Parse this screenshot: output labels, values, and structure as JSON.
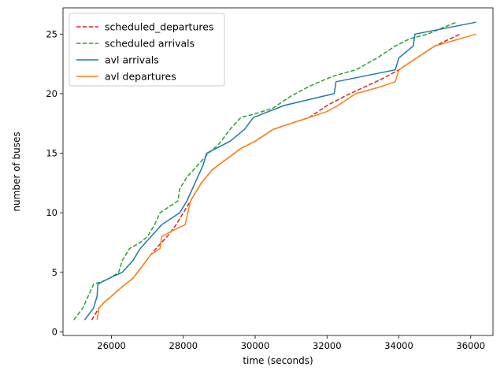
{
  "chart_data": {
    "type": "line",
    "xlabel": "time (seconds)",
    "ylabel": "number of buses",
    "xlim": [
      24650,
      36620
    ],
    "ylim": [
      -0.3,
      27.2
    ],
    "xticks": [
      26000,
      28000,
      30000,
      32000,
      34000,
      36000
    ],
    "yticks": [
      0,
      5,
      10,
      15,
      20,
      25
    ],
    "grid": false,
    "legend_position": "top-left",
    "series": [
      {
        "name": "scheduled_departures",
        "color": "#d62728",
        "dash": "dashed",
        "points": [
          [
            25450,
            1
          ],
          [
            25650,
            2
          ],
          [
            25800,
            2.5
          ],
          [
            26000,
            3
          ],
          [
            26300,
            3.8
          ],
          [
            26600,
            4.5
          ],
          [
            26850,
            5.5
          ],
          [
            27100,
            6.5
          ],
          [
            27300,
            7.2
          ],
          [
            27550,
            8
          ],
          [
            27800,
            9
          ],
          [
            28000,
            10
          ],
          [
            28200,
            11
          ],
          [
            28500,
            12.5
          ],
          [
            28800,
            13.6
          ],
          [
            29200,
            14.5
          ],
          [
            29600,
            15.4
          ],
          [
            30000,
            16
          ],
          [
            30500,
            17
          ],
          [
            31000,
            17.5
          ],
          [
            31500,
            18
          ],
          [
            32000,
            19
          ],
          [
            32500,
            19.8
          ],
          [
            33000,
            20.5
          ],
          [
            33500,
            21.2
          ],
          [
            34000,
            22
          ],
          [
            34500,
            23
          ],
          [
            35000,
            24
          ],
          [
            35700,
            25
          ]
        ]
      },
      {
        "name": "scheduled arrivals",
        "color": "#2ca02c",
        "dash": "dashed",
        "points": [
          [
            24950,
            1
          ],
          [
            25200,
            2
          ],
          [
            25500,
            4
          ],
          [
            25800,
            4.3
          ],
          [
            26000,
            4.6
          ],
          [
            26200,
            5
          ],
          [
            26300,
            6
          ],
          [
            26500,
            7
          ],
          [
            26800,
            7.5
          ],
          [
            27000,
            8
          ],
          [
            27200,
            9
          ],
          [
            27350,
            10
          ],
          [
            27600,
            10.5
          ],
          [
            27850,
            11
          ],
          [
            27900,
            12
          ],
          [
            28100,
            13
          ],
          [
            28400,
            14
          ],
          [
            28700,
            15
          ],
          [
            29000,
            15.8
          ],
          [
            29300,
            17
          ],
          [
            29600,
            18
          ],
          [
            30000,
            18.3
          ],
          [
            30500,
            18.8
          ],
          [
            31000,
            19.8
          ],
          [
            31500,
            20.6
          ],
          [
            31800,
            21
          ],
          [
            32200,
            21.5
          ],
          [
            32800,
            22
          ],
          [
            33400,
            23
          ],
          [
            33900,
            24
          ],
          [
            34300,
            24.6
          ],
          [
            34800,
            25
          ],
          [
            35200,
            25.5
          ],
          [
            35600,
            26
          ]
        ]
      },
      {
        "name": "avl arrivals",
        "color": "#1f77b4",
        "dash": "solid",
        "points": [
          [
            25250,
            1
          ],
          [
            25500,
            2
          ],
          [
            25600,
            3
          ],
          [
            25620,
            4
          ],
          [
            25800,
            4.3
          ],
          [
            26000,
            4.6
          ],
          [
            26300,
            5
          ],
          [
            26600,
            6
          ],
          [
            26800,
            7
          ],
          [
            27100,
            8
          ],
          [
            27400,
            9
          ],
          [
            27900,
            10
          ],
          [
            28100,
            11
          ],
          [
            28400,
            13
          ],
          [
            28550,
            14
          ],
          [
            28650,
            15
          ],
          [
            29300,
            16
          ],
          [
            29700,
            17
          ],
          [
            29950,
            18
          ],
          [
            30800,
            19
          ],
          [
            32200,
            20
          ],
          [
            32250,
            21
          ],
          [
            33900,
            22
          ],
          [
            34000,
            23
          ],
          [
            34400,
            24
          ],
          [
            34450,
            25
          ],
          [
            36150,
            26
          ]
        ]
      },
      {
        "name": "avl departures",
        "color": "#ff7f0e",
        "dash": "solid",
        "points": [
          [
            25600,
            1
          ],
          [
            25650,
            2
          ],
          [
            25800,
            2.5
          ],
          [
            26000,
            3
          ],
          [
            26300,
            3.8
          ],
          [
            26600,
            4.5
          ],
          [
            26850,
            5.5
          ],
          [
            27100,
            6.5
          ],
          [
            27350,
            7
          ],
          [
            27400,
            8
          ],
          [
            27700,
            8.5
          ],
          [
            28050,
            9
          ],
          [
            28200,
            11
          ],
          [
            28500,
            12.5
          ],
          [
            28800,
            13.6
          ],
          [
            29200,
            14.5
          ],
          [
            29600,
            15.4
          ],
          [
            30000,
            16
          ],
          [
            30500,
            17
          ],
          [
            31000,
            17.5
          ],
          [
            31500,
            18
          ],
          [
            32000,
            18.5
          ],
          [
            32300,
            19
          ],
          [
            32800,
            20
          ],
          [
            33400,
            20.5
          ],
          [
            33900,
            21
          ],
          [
            34000,
            22
          ],
          [
            34500,
            23
          ],
          [
            35000,
            24
          ],
          [
            36150,
            25
          ]
        ]
      }
    ]
  }
}
